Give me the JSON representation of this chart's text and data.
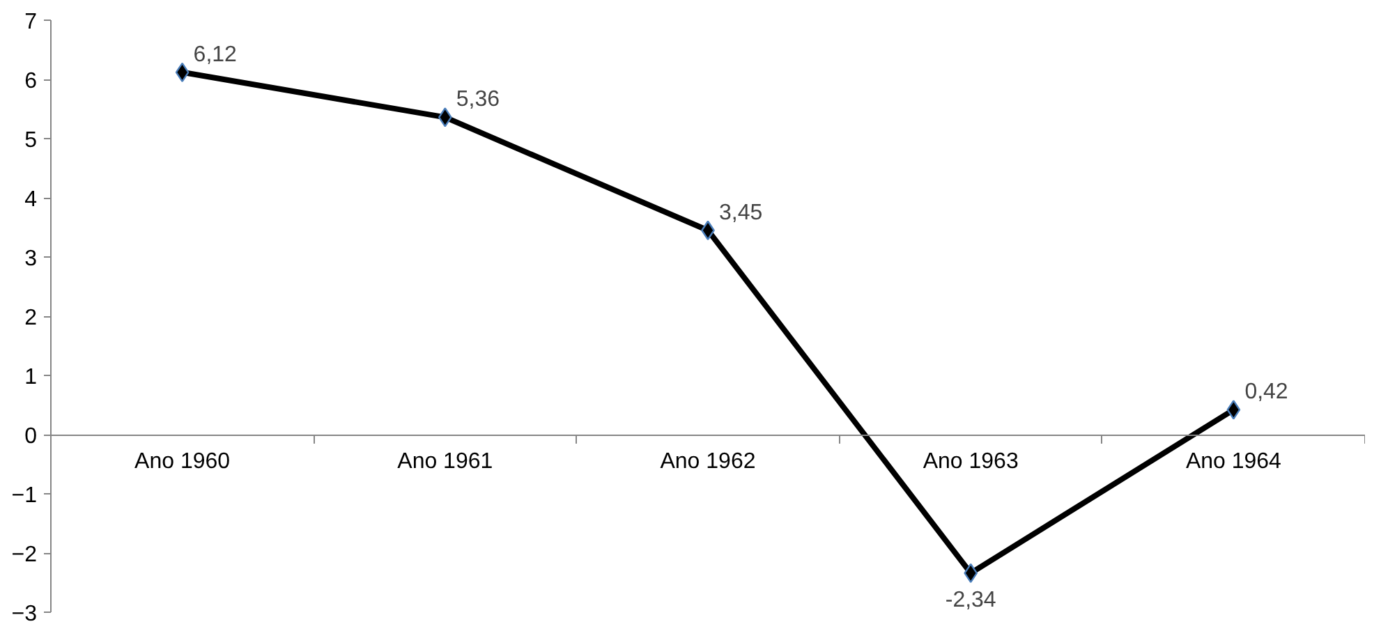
{
  "chart_data": {
    "type": "line",
    "categories": [
      "Ano 1960",
      "Ano 1961",
      "Ano 1962",
      "Ano 1963",
      "Ano 1964"
    ],
    "series": [
      {
        "color": "#000000",
        "values": [
          6.12,
          5.36,
          3.45,
          -2.34,
          0.42
        ],
        "value_labels": [
          "6,12",
          "5,36",
          "3,45",
          "-2,34",
          "0,42"
        ]
      }
    ],
    "ylim": [
      -3,
      7
    ],
    "yticks": [
      -3,
      -2,
      -1,
      0,
      1,
      2,
      3,
      4,
      5,
      6,
      7
    ],
    "grid": false,
    "marker": "diamond",
    "line_style": "solid"
  }
}
